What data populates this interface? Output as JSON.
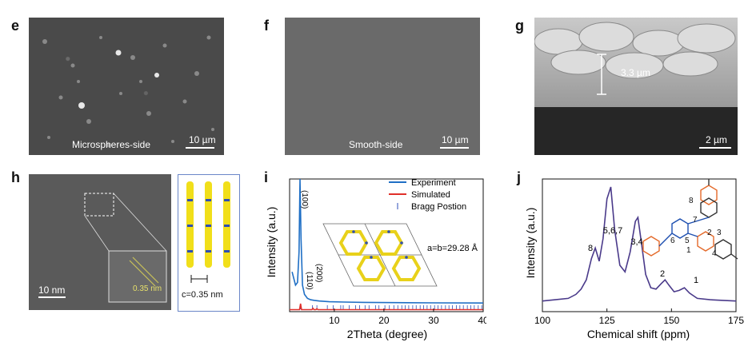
{
  "panels": {
    "e": {
      "label": "e",
      "caption": "Microspheres-side",
      "scale": "10 µm"
    },
    "f": {
      "label": "f",
      "caption": "Smooth-side",
      "scale": "10 µm"
    },
    "g": {
      "label": "g",
      "thickness": "3.3 µm",
      "scale": "2 µm"
    },
    "h": {
      "label": "h",
      "scale": "10 nm",
      "spacing": "0.35 nm",
      "c_label": "c=0.35 nm"
    },
    "i": {
      "label": "i",
      "lattice": "a=b=29.28 Å",
      "peaks": [
        "(100)",
        "(110)",
        "(200)"
      ]
    },
    "j": {
      "label": "j",
      "annotations": [
        "8",
        "5,6,7",
        "3,4",
        "2",
        "1"
      ]
    }
  },
  "chart_data": [
    {
      "type": "line",
      "panel": "i",
      "xlabel": "2Theta (degree)",
      "ylabel": "Intensity (a.u.)",
      "xlim": [
        1,
        40
      ],
      "xticks": [
        10,
        20,
        30,
        40
      ],
      "legend": [
        "Experiment",
        "Simulated",
        "Bragg Postion"
      ],
      "legend_position": "top-right",
      "series": [
        {
          "name": "Experiment",
          "color": "#1f6fc5",
          "x": [
            1.5,
            2.2,
            2.6,
            2.9,
            3.1,
            3.3,
            3.6,
            4.0,
            4.6,
            5.2,
            6.0,
            7.0,
            9.0,
            12.0,
            16.0,
            22.0,
            30.0,
            40.0
          ],
          "y": [
            0.3,
            0.2,
            0.22,
            0.45,
            1.0,
            0.55,
            0.2,
            0.13,
            0.1,
            0.09,
            0.085,
            0.08,
            0.075,
            0.072,
            0.07,
            0.068,
            0.066,
            0.065
          ]
        },
        {
          "name": "Simulated",
          "color": "#e0302a",
          "x": [
            1.0,
            3.0,
            3.2,
            3.4,
            5.5,
            5.7,
            5.9,
            6.3,
            6.5,
            6.7,
            40.0
          ],
          "y": [
            0.015,
            0.015,
            0.06,
            0.015,
            0.015,
            0.025,
            0.015,
            0.015,
            0.022,
            0.015,
            0.015
          ]
        }
      ],
      "bragg_color": "#2c4db8",
      "bragg_positions": [
        3.2,
        5.6,
        6.5,
        8.6,
        9.8,
        11.3,
        11.8,
        13.0,
        14.3,
        15.1,
        16.2,
        17.0,
        18.3,
        19.0,
        20.2,
        21.1,
        22.0,
        22.8,
        23.6,
        24.3,
        25.0,
        25.8,
        26.5,
        27.3,
        28.0,
        28.7,
        29.4,
        30.2,
        30.9,
        31.6,
        32.4,
        33.1,
        33.8,
        34.6,
        35.3,
        36.0,
        36.8,
        37.5,
        38.2,
        39.0,
        39.7
      ]
    },
    {
      "type": "line",
      "panel": "j",
      "xlabel": "Chemical shift (ppm)",
      "ylabel": "Intensity (a.u.)",
      "xlim": [
        100,
        175
      ],
      "xticks": [
        100,
        125,
        150,
        175
      ],
      "series": [
        {
          "color": "#4a3a8a",
          "x": [
            100,
            105,
            110,
            113,
            115,
            117,
            119,
            120.5,
            122,
            123.5,
            125,
            126.5,
            128,
            130,
            132,
            134,
            136,
            137,
            138.5,
            140,
            142,
            144,
            146,
            147.5,
            149,
            151,
            153,
            155,
            157,
            160,
            165,
            170,
            175
          ],
          "y": [
            0.08,
            0.09,
            0.1,
            0.13,
            0.17,
            0.24,
            0.4,
            0.48,
            0.38,
            0.55,
            0.85,
            0.94,
            0.62,
            0.35,
            0.3,
            0.45,
            0.68,
            0.71,
            0.5,
            0.28,
            0.18,
            0.17,
            0.21,
            0.24,
            0.2,
            0.15,
            0.16,
            0.18,
            0.14,
            0.1,
            0.09,
            0.085,
            0.08
          ]
        }
      ]
    }
  ]
}
